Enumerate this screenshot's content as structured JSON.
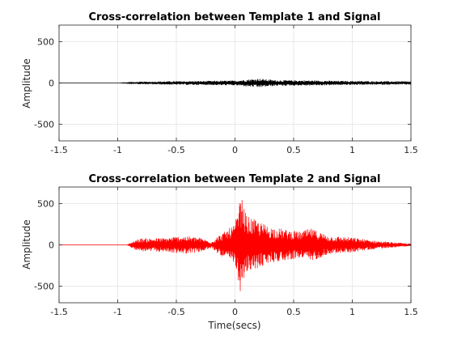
{
  "chart_data": [
    {
      "type": "line",
      "title": "Cross-correlation between Template 1 and Signal",
      "xlabel": "",
      "ylabel": "Amplitude",
      "xlim": [
        -1.5,
        1.5
      ],
      "ylim": [
        -700,
        700
      ],
      "xticks": [
        "-1.5",
        "-1",
        "-0.5",
        "0",
        "0.5",
        "1",
        "1.5"
      ],
      "yticks": [
        "500",
        "0",
        "-500"
      ],
      "grid": true,
      "color": "#000000",
      "envelope": [
        {
          "x": -1.5,
          "amp": 0
        },
        {
          "x": -1.0,
          "amp": 0
        },
        {
          "x": -0.9,
          "amp": 6
        },
        {
          "x": -0.8,
          "amp": 16
        },
        {
          "x": -0.5,
          "amp": 22
        },
        {
          "x": -0.3,
          "amp": 24
        },
        {
          "x": 0.0,
          "amp": 30
        },
        {
          "x": 0.2,
          "amp": 55
        },
        {
          "x": 0.35,
          "amp": 35
        },
        {
          "x": 0.6,
          "amp": 32
        },
        {
          "x": 0.9,
          "amp": 26
        },
        {
          "x": 1.2,
          "amp": 22
        },
        {
          "x": 1.5,
          "amp": 20
        }
      ]
    },
    {
      "type": "line",
      "title": "Cross-correlation between Template 2 and Signal",
      "xlabel": "Time(secs)",
      "ylabel": "Amplitude",
      "xlim": [
        -1.5,
        1.5
      ],
      "ylim": [
        -700,
        700
      ],
      "xticks": [
        "-1.5",
        "-1",
        "-0.5",
        "0",
        "0.5",
        "1",
        "1.5"
      ],
      "yticks": [
        "500",
        "0",
        "-500"
      ],
      "grid": true,
      "color": "#ff0000",
      "envelope": [
        {
          "x": -1.5,
          "amp": 0
        },
        {
          "x": -0.92,
          "amp": 0
        },
        {
          "x": -0.85,
          "amp": 60
        },
        {
          "x": -0.8,
          "amp": 80
        },
        {
          "x": -0.6,
          "amp": 85
        },
        {
          "x": -0.45,
          "amp": 110
        },
        {
          "x": -0.3,
          "amp": 90
        },
        {
          "x": -0.2,
          "amp": 40
        },
        {
          "x": -0.15,
          "amp": 100
        },
        {
          "x": 0.0,
          "amp": 250
        },
        {
          "x": 0.05,
          "amp": 600
        },
        {
          "x": 0.1,
          "amp": 350
        },
        {
          "x": 0.3,
          "amp": 220
        },
        {
          "x": 0.55,
          "amp": 160
        },
        {
          "x": 0.65,
          "amp": 200
        },
        {
          "x": 0.8,
          "amp": 110
        },
        {
          "x": 1.0,
          "amp": 90
        },
        {
          "x": 1.2,
          "amp": 50
        },
        {
          "x": 1.4,
          "amp": 25
        },
        {
          "x": 1.5,
          "amp": 15
        }
      ]
    }
  ]
}
